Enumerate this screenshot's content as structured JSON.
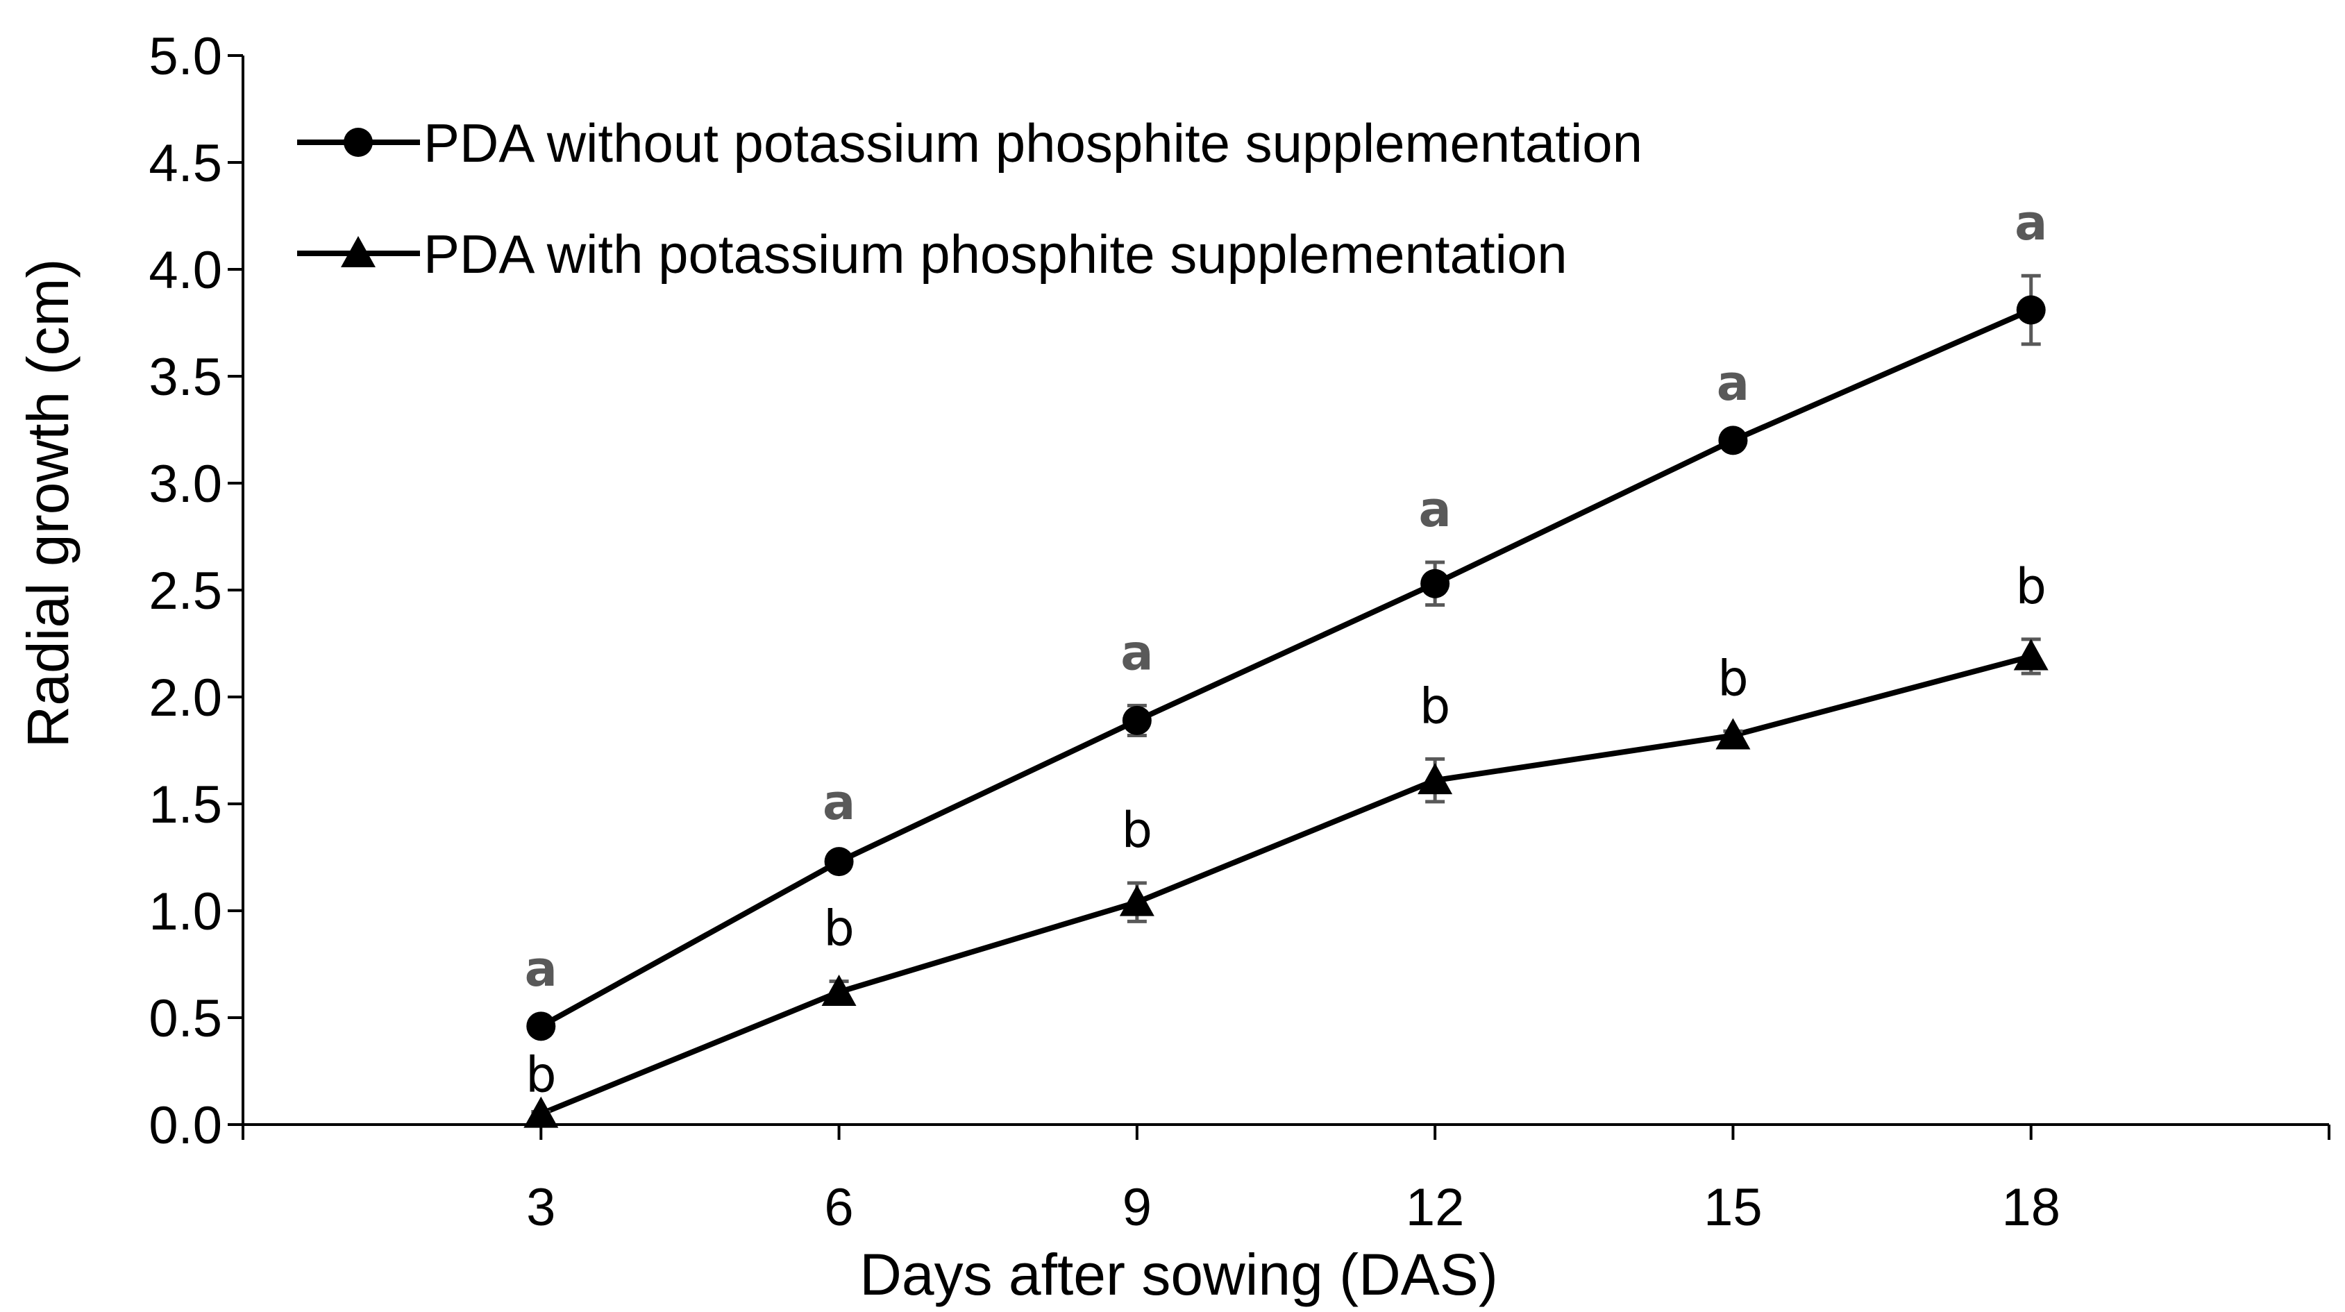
{
  "chart_data": {
    "type": "line",
    "title": "",
    "xlabel": "Days after sowing (DAS)",
    "ylabel": "Radial growth (cm)",
    "x": [
      3,
      6,
      9,
      12,
      15,
      18
    ],
    "xlim": [
      0,
      21
    ],
    "ylim": [
      0,
      5
    ],
    "x_tick_labels": [
      "3",
      "6",
      "9",
      "12",
      "15",
      "18"
    ],
    "y_tick_labels": [
      "0.0",
      "0.5",
      "1.0",
      "1.5",
      "2.0",
      "2.5",
      "3.0",
      "3.5",
      "4.0",
      "4.5",
      "5.0"
    ],
    "y_ticks": [
      0,
      0.5,
      1.0,
      1.5,
      2.0,
      2.5,
      3.0,
      3.5,
      4.0,
      4.5,
      5.0
    ],
    "grid": false,
    "legend_position": "top-left",
    "series": [
      {
        "name": "PDA without potassium phosphite supplementation",
        "marker": "circle",
        "color": "#000000",
        "values": [
          0.46,
          1.23,
          1.89,
          2.53,
          3.2,
          3.81
        ],
        "errors": [
          0.02,
          0.03,
          0.07,
          0.1,
          0.02,
          0.16
        ],
        "significance_labels": [
          "a",
          "a",
          "a",
          "a",
          "a",
          "a"
        ],
        "label_color": "#595959"
      },
      {
        "name": "PDA with potassium phosphite supplementation",
        "marker": "triangle",
        "color": "#000000",
        "values": [
          0.05,
          0.62,
          1.04,
          1.61,
          1.82,
          2.19
        ],
        "errors": [
          0.01,
          0.05,
          0.09,
          0.1,
          0.02,
          0.08
        ],
        "significance_labels": [
          "b",
          "b",
          "b",
          "b",
          "b",
          "b"
        ],
        "label_color": "#000000"
      }
    ]
  }
}
